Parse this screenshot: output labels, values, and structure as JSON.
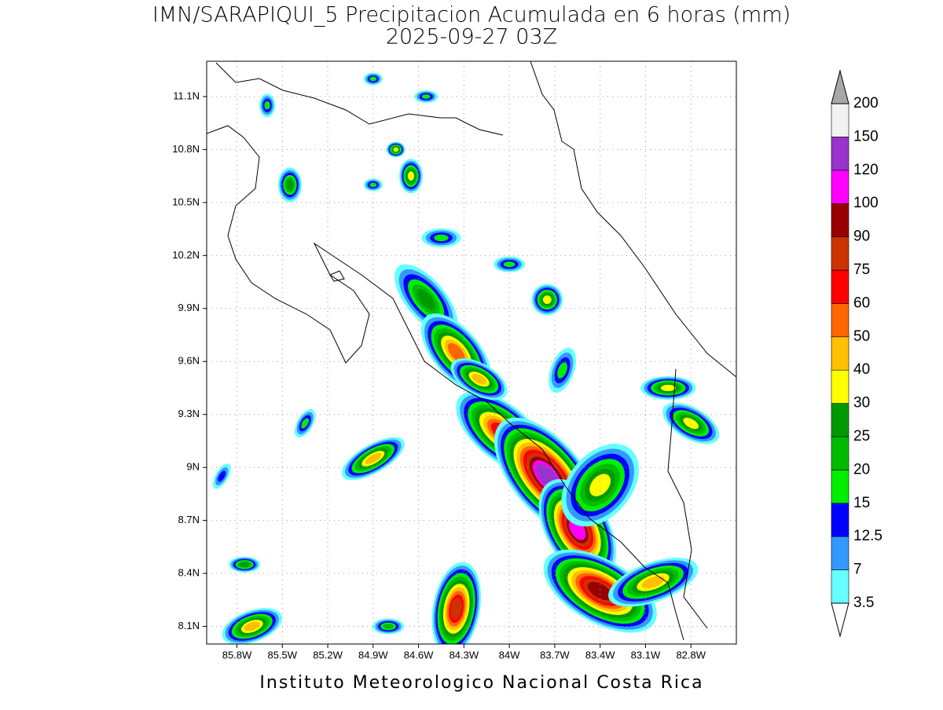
{
  "header": {
    "title": "IMN/SARAPIQUI_5 Precipitacion Acumulada en 6 horas (mm)",
    "subtitle": "2025-09-27 03Z"
  },
  "map": {
    "lonlim": [
      -86.0,
      -82.5
    ],
    "latlim": [
      8.0,
      11.3
    ],
    "grid": true,
    "lat_ticks": [
      {
        "value": 11.1,
        "label": "11.1N"
      },
      {
        "value": 10.8,
        "label": "10.8N"
      },
      {
        "value": 10.5,
        "label": "10.5N"
      },
      {
        "value": 10.2,
        "label": "10.2N"
      },
      {
        "value": 9.9,
        "label": "9.9N"
      },
      {
        "value": 9.6,
        "label": "9.6N"
      },
      {
        "value": 9.3,
        "label": "9.3N"
      },
      {
        "value": 9.0,
        "label": "9N"
      },
      {
        "value": 8.7,
        "label": "8.7N"
      },
      {
        "value": 8.4,
        "label": "8.4N"
      },
      {
        "value": 8.1,
        "label": "8.1N"
      }
    ],
    "lon_ticks": [
      {
        "value": -85.8,
        "label": "85.8W"
      },
      {
        "value": -85.5,
        "label": "85.5W"
      },
      {
        "value": -85.2,
        "label": "85.2W"
      },
      {
        "value": -84.9,
        "label": "84.9W"
      },
      {
        "value": -84.6,
        "label": "84.6W"
      },
      {
        "value": -84.3,
        "label": "84.3W"
      },
      {
        "value": -84.0,
        "label": "84W"
      },
      {
        "value": -83.7,
        "label": "83.7W"
      },
      {
        "value": -83.4,
        "label": "83.4W"
      },
      {
        "value": -83.1,
        "label": "83.1W"
      },
      {
        "value": -82.8,
        "label": "82.8W"
      }
    ]
  },
  "colorbar": {
    "levels": [
      3.5,
      7,
      12.5,
      15,
      20,
      25,
      30,
      40,
      50,
      60,
      75,
      90,
      100,
      120,
      150,
      200
    ],
    "colors": [
      "#66ffff",
      "#3399ff",
      "#0000ff",
      "#00ee00",
      "#00bb00",
      "#009900",
      "#ffff00",
      "#ffc000",
      "#ff6600",
      "#ff0000",
      "#cc3300",
      "#990000",
      "#ff00ff",
      "#9933cc",
      "#f2f2f2"
    ],
    "over_color": "#a8a8a8",
    "under_color": "#ffffff"
  },
  "footer": "Instituto Meteorologico Nacional Costa Rica"
}
